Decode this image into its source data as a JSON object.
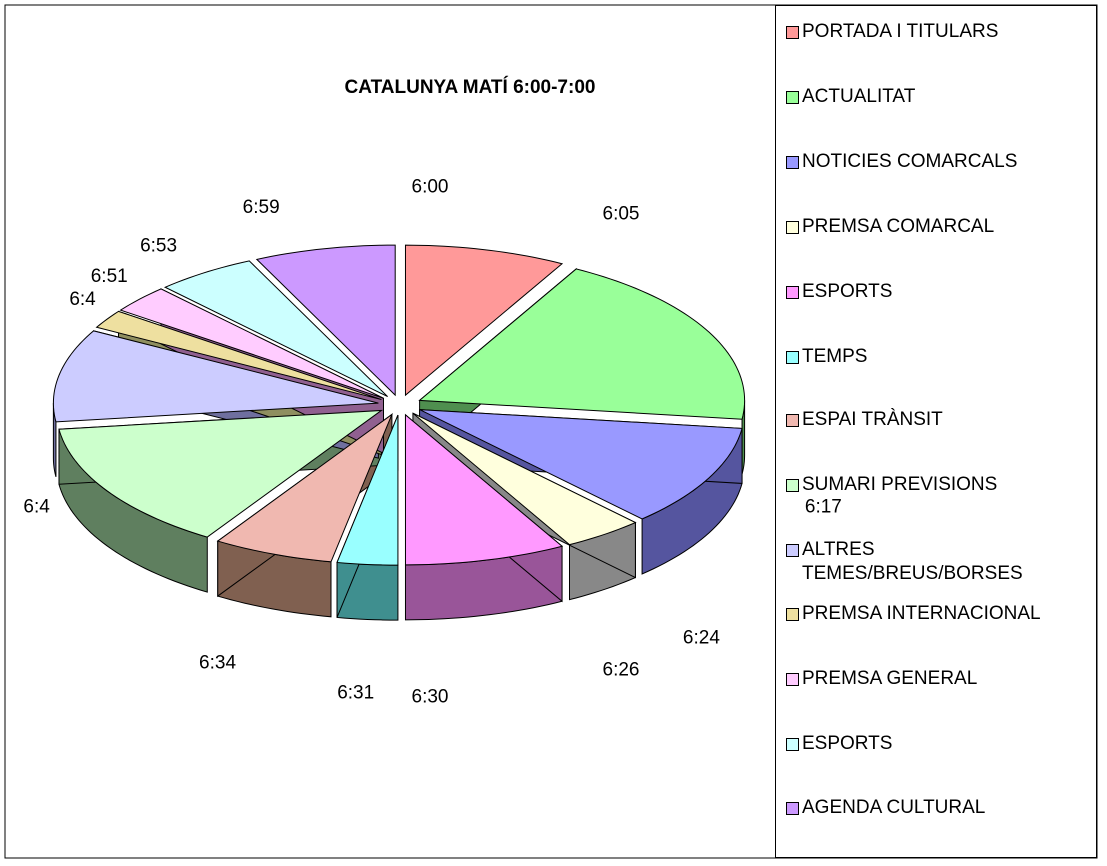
{
  "chart_data": {
    "type": "pie",
    "title": "CATALUNYA MATÍ 6:00-7:00",
    "categories": [
      "PORTADA I TITULARS",
      "ACTUALITAT",
      "NOTICIES COMARCALS",
      "PREMSA COMARCAL",
      "ESPORTS",
      "TEMPS",
      "ESPAI TRÀNSIT",
      "SUMARI PREVISIONS",
      "ALTRES TEMES/BREUS/BORSES",
      "PREMSA INTERNACIONAL",
      "PREMSA GENERAL",
      "ESPORTS",
      "AGENDA CULTURAL"
    ],
    "values": [
      8,
      19,
      11,
      4,
      8,
      3,
      6,
      14,
      10,
      2,
      3,
      5,
      7
    ],
    "slice_labels": [
      "6:00",
      "6:05",
      "6:17",
      "6:24",
      "6:26",
      "6:30",
      "6:31",
      "6:34",
      "6:4",
      "6:4",
      "6:51",
      "6:53",
      "6:59"
    ],
    "colors": [
      "#ff9999",
      "#99ff99",
      "#9999ff",
      "#ffffdd",
      "#ff99ff",
      "#99ffff",
      "#f0b8b0",
      "#ccffcc",
      "#ccccff",
      "#eee0a0",
      "#ffccff",
      "#ccffff",
      "#cc99ff"
    ],
    "side_colors": [
      "#996060",
      "#4f8f4f",
      "#55559f",
      "#888888",
      "#995599",
      "#3f8f8f",
      "#806050",
      "#5f7f5f",
      "#6f6f9f",
      "#8f8f60",
      "#906090",
      "#6f9f9f",
      "#7f5fa0"
    ]
  }
}
